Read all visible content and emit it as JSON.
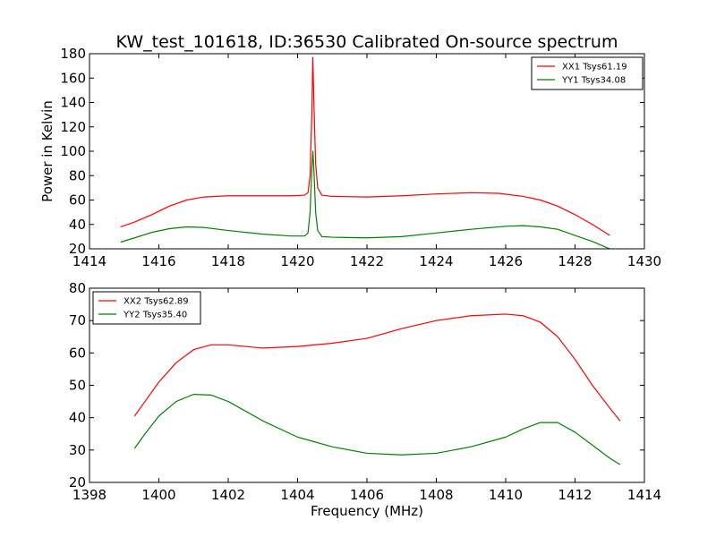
{
  "title": "KW_test_101618, ID:36530 Calibrated On-source spectrum",
  "chart_data": [
    {
      "type": "line",
      "title": "KW_test_101618, ID:36530 Calibrated On-source spectrum",
      "xlabel": "",
      "ylabel": "Power in Kelvin",
      "xlim": [
        1414,
        1430
      ],
      "ylim": [
        20,
        180
      ],
      "xticks": [
        1414,
        1416,
        1418,
        1420,
        1422,
        1424,
        1426,
        1428,
        1430
      ],
      "yticks": [
        20,
        40,
        60,
        80,
        100,
        120,
        140,
        160,
        180
      ],
      "grid": false,
      "legend_position": "upper right",
      "series": [
        {
          "name": "XX1 Tsys61.19",
          "color": "#ff0000",
          "x": [
            1414.9,
            1415.3,
            1415.8,
            1416.3,
            1416.8,
            1417.3,
            1418,
            1419,
            1419.8,
            1420.2,
            1420.3,
            1420.36,
            1420.41,
            1420.44,
            1420.47,
            1420.52,
            1420.58,
            1420.7,
            1421,
            1422,
            1423,
            1424,
            1425,
            1425.8,
            1426.5,
            1427,
            1427.5,
            1428,
            1428.5,
            1429
          ],
          "values": [
            38,
            42,
            48,
            55,
            60,
            62.5,
            63.5,
            63.5,
            63.5,
            64,
            66,
            80,
            130,
            177,
            140,
            90,
            70,
            64,
            63,
            62.5,
            63.5,
            65,
            66,
            65.5,
            63,
            60,
            55,
            48,
            40,
            31
          ]
        },
        {
          "name": "YY1 Tsys34.08",
          "color": "#008000",
          "x": [
            1414.9,
            1415.3,
            1415.8,
            1416.3,
            1416.8,
            1417.3,
            1418,
            1419,
            1419.8,
            1420.2,
            1420.3,
            1420.36,
            1420.41,
            1420.44,
            1420.47,
            1420.52,
            1420.58,
            1420.7,
            1421,
            1422,
            1423,
            1424,
            1425,
            1426,
            1426.5,
            1427,
            1427.5,
            1428,
            1428.5,
            1429
          ],
          "values": [
            25.5,
            29,
            33.5,
            36.5,
            38,
            37.5,
            35,
            32,
            30.5,
            30.5,
            33,
            50,
            85,
            100,
            85,
            50,
            35,
            30,
            29.5,
            29,
            30,
            33,
            36,
            38.5,
            39,
            38,
            36,
            31,
            26,
            20
          ]
        }
      ]
    },
    {
      "type": "line",
      "title": "",
      "xlabel": "Frequency (MHz)",
      "ylabel": "",
      "xlim": [
        1398,
        1414
      ],
      "ylim": [
        20,
        80
      ],
      "xticks": [
        1398,
        1400,
        1402,
        1404,
        1406,
        1408,
        1410,
        1412,
        1414
      ],
      "yticks": [
        20,
        30,
        40,
        50,
        60,
        70,
        80
      ],
      "grid": false,
      "legend_position": "upper left",
      "series": [
        {
          "name": "XX2 Tsys62.89",
          "color": "#ff0000",
          "x": [
            1399.3,
            1399.6,
            1400,
            1400.5,
            1401,
            1401.5,
            1402,
            1403,
            1404,
            1405,
            1406,
            1407,
            1408,
            1409,
            1410,
            1410.5,
            1411,
            1411.5,
            1412,
            1412.5,
            1413,
            1413.3
          ],
          "values": [
            40.5,
            45,
            51,
            57,
            61,
            62.5,
            62.5,
            61.5,
            62,
            63,
            64.5,
            67.5,
            70,
            71.5,
            72,
            71.5,
            69.5,
            65,
            58,
            50,
            43,
            39
          ]
        },
        {
          "name": "YY2 Tsys35.40",
          "color": "#008000",
          "x": [
            1399.3,
            1399.6,
            1400,
            1400.5,
            1401,
            1401.5,
            1402,
            1403,
            1404,
            1405,
            1406,
            1407,
            1408,
            1409,
            1410,
            1410.5,
            1411,
            1411.5,
            1412,
            1412.5,
            1413,
            1413.3
          ],
          "values": [
            30.5,
            35,
            40.5,
            45,
            47.2,
            47,
            45,
            39,
            34,
            31,
            29,
            28.5,
            29,
            31,
            34,
            36.5,
            38.5,
            38.5,
            35.5,
            31.5,
            27.5,
            25.5
          ]
        }
      ]
    }
  ]
}
